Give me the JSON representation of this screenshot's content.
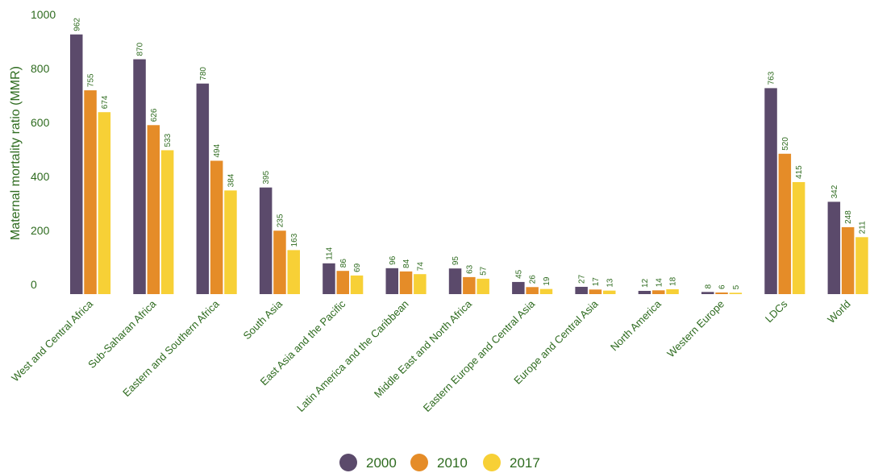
{
  "chart_data": {
    "type": "bar",
    "title": "",
    "xlabel": "",
    "ylabel": "Maternal mortality ratio (MMR)",
    "ylim": [
      0,
      1000
    ],
    "yticks": [
      0,
      200,
      400,
      600,
      800,
      1000
    ],
    "grid": false,
    "legend_position": "bottom-center",
    "categories": [
      "West and Central Africa",
      "Sub-Saharan Africa",
      "Eastern and Southern Africa",
      "South Asia",
      "East Asia and the Pacific",
      "Latin America and the Caribbean",
      "Middle East and North Africa",
      "Eastern Europe and Central Asia",
      "Europe and Central Asia",
      "North America",
      "Western Europe",
      "LDCs",
      "World"
    ],
    "series": [
      {
        "name": "2000",
        "color": "#5b4a6b",
        "values": [
          962,
          870,
          780,
          395,
          114,
          96,
          95,
          45,
          27,
          12,
          8,
          763,
          342
        ]
      },
      {
        "name": "2010",
        "color": "#e58c28",
        "values": [
          755,
          626,
          494,
          235,
          86,
          84,
          63,
          26,
          17,
          14,
          6,
          520,
          248
        ]
      },
      {
        "name": "2017",
        "color": "#f7d036",
        "values": [
          674,
          533,
          384,
          163,
          69,
          74,
          57,
          19,
          13,
          18,
          5,
          415,
          211
        ]
      }
    ]
  }
}
